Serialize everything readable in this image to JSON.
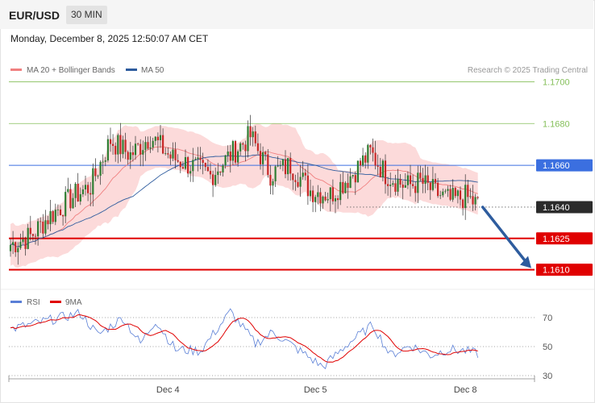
{
  "header": {
    "symbol": "EUR/USD",
    "timeframe": "30 MIN",
    "timestamp": "Monday, December 8, 2025 12:50:07 AM CET"
  },
  "chart_data": [
    {
      "type": "candlestick",
      "title": "",
      "legend": [
        {
          "label": "MA 20 + Bollinger Bands",
          "color": "#f08080"
        },
        {
          "label": "MA 50",
          "color": "#2e5c9e"
        }
      ],
      "legend_position": "top-left",
      "watermark": "Research © 2025 Trading Central",
      "ylim": [
        1.1601,
        1.1716
      ],
      "grid": false,
      "x_ticks": [
        {
          "label": "Dec 4",
          "index": 63
        },
        {
          "label": "Dec 5",
          "index": 122
        },
        {
          "label": "Dec 8",
          "index": 182
        }
      ],
      "levels": [
        {
          "value": 1.17,
          "label": "1.1700",
          "color": "#84bf59",
          "style": "line"
        },
        {
          "value": 1.168,
          "label": "1.1680",
          "color": "#84bf59",
          "style": "line"
        },
        {
          "value": 1.166,
          "label": "1.1660",
          "color": "#3b6fe0",
          "style": "box"
        },
        {
          "value": 1.164,
          "label": "1.1640",
          "color": "#2b2b2b",
          "style": "box-dotted"
        },
        {
          "value": 1.1625,
          "label": "1.1625",
          "color": "#e00000",
          "style": "box"
        },
        {
          "value": 1.161,
          "label": "1.1610",
          "color": "#e00000",
          "style": "box"
        }
      ],
      "projection_arrow": {
        "from_value": 1.164,
        "to_value": 1.161,
        "color": "#2e5c9e"
      },
      "anchors": [
        [
          0,
          1.1622
        ],
        [
          8,
          1.1626
        ],
        [
          15,
          1.1635
        ],
        [
          25,
          1.1645
        ],
        [
          32,
          1.165
        ],
        [
          40,
          1.1672
        ],
        [
          48,
          1.1665
        ],
        [
          56,
          1.1674
        ],
        [
          64,
          1.1664
        ],
        [
          72,
          1.166
        ],
        [
          80,
          1.1655
        ],
        [
          88,
          1.1665
        ],
        [
          96,
          1.1674
        ],
        [
          104,
          1.1656
        ],
        [
          112,
          1.166
        ],
        [
          120,
          1.1648
        ],
        [
          128,
          1.1646
        ],
        [
          136,
          1.1655
        ],
        [
          144,
          1.1666
        ],
        [
          150,
          1.1656
        ],
        [
          158,
          1.165
        ],
        [
          164,
          1.1652
        ],
        [
          170,
          1.1647
        ],
        [
          176,
          1.1643
        ],
        [
          182,
          1.1645
        ],
        [
          187,
          1.1641
        ]
      ]
    },
    {
      "type": "line",
      "title": "",
      "legend": [
        {
          "label": "RSI",
          "color": "#5a7fd6"
        },
        {
          "label": "9MA",
          "color": "#e00000"
        }
      ],
      "legend_position": "top-left",
      "ylim": [
        25,
        75
      ],
      "y_ticks": [
        30,
        50,
        70
      ],
      "anchors": [
        [
          0,
          62
        ],
        [
          15,
          68
        ],
        [
          28,
          73
        ],
        [
          35,
          58
        ],
        [
          45,
          70
        ],
        [
          52,
          52
        ],
        [
          58,
          68
        ],
        [
          66,
          48
        ],
        [
          76,
          47
        ],
        [
          88,
          74
        ],
        [
          98,
          52
        ],
        [
          105,
          60
        ],
        [
          115,
          48
        ],
        [
          125,
          36
        ],
        [
          135,
          52
        ],
        [
          145,
          65
        ],
        [
          152,
          44
        ],
        [
          160,
          51
        ],
        [
          168,
          44
        ],
        [
          175,
          48
        ],
        [
          182,
          47
        ],
        [
          187,
          45
        ]
      ]
    }
  ]
}
